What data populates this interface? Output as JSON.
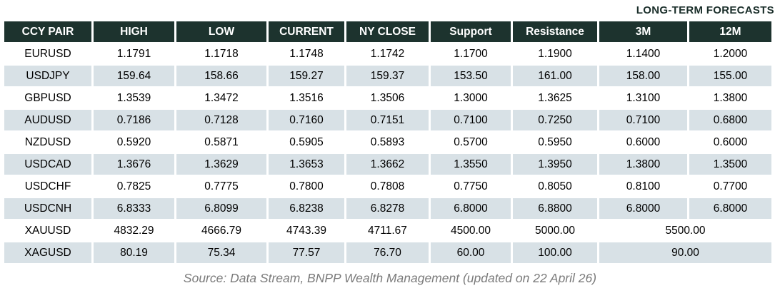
{
  "chart_data": {
    "type": "table",
    "title": "LONG-TERM FORECASTS",
    "columns": [
      "CCY PAIR",
      "HIGH",
      "LOW",
      "CURRENT",
      "NY CLOSE",
      "Support",
      "Resistance",
      "3M",
      "12M"
    ],
    "rows": [
      {
        "cells": [
          "EURUSD",
          "1.1791",
          "1.1718",
          "1.1748",
          "1.1742",
          "1.1700",
          "1.1900",
          "1.1400",
          "1.2000"
        ]
      },
      {
        "cells": [
          "USDJPY",
          "159.64",
          "158.66",
          "159.27",
          "159.37",
          "153.50",
          "161.00",
          "158.00",
          "155.00"
        ]
      },
      {
        "cells": [
          "GBPUSD",
          "1.3539",
          "1.3472",
          "1.3516",
          "1.3506",
          "1.3000",
          "1.3625",
          "1.3100",
          "1.3800"
        ]
      },
      {
        "cells": [
          "AUDUSD",
          "0.7186",
          "0.7128",
          "0.7160",
          "0.7151",
          "0.7100",
          "0.7250",
          "0.7100",
          "0.6800"
        ]
      },
      {
        "cells": [
          "NZDUSD",
          "0.5920",
          "0.5871",
          "0.5905",
          "0.5893",
          "0.5700",
          "0.5950",
          "0.6000",
          "0.6000"
        ]
      },
      {
        "cells": [
          "USDCAD",
          "1.3676",
          "1.3629",
          "1.3653",
          "1.3662",
          "1.3550",
          "1.3950",
          "1.3800",
          "1.3500"
        ]
      },
      {
        "cells": [
          "USDCHF",
          "0.7825",
          "0.7775",
          "0.7800",
          "0.7808",
          "0.7750",
          "0.8050",
          "0.8100",
          "0.7700"
        ]
      },
      {
        "cells": [
          "USDCNH",
          "6.8333",
          "6.8099",
          "6.8238",
          "6.8278",
          "6.8000",
          "6.8800",
          "6.8000",
          "6.8000"
        ]
      },
      {
        "cells": [
          "XAUUSD",
          "4832.29",
          "4666.79",
          "4743.39",
          "4711.67",
          "4500.00",
          "5000.00",
          "5500.00"
        ],
        "merge_last": 2
      },
      {
        "cells": [
          "XAGUSD",
          "80.19",
          "75.34",
          "77.57",
          "76.70",
          "60.00",
          "100.00",
          "90.00"
        ],
        "merge_last": 2
      }
    ],
    "source": "Source: Data Stream, BNPP Wealth Management (updated on 22 April 26)"
  },
  "colors": {
    "header-bg": "#1d332e",
    "header-text": "#ffffff",
    "row-bg": "#ffffff",
    "alt-row-bg": "#d8e1e6",
    "title-color": "#1a2e2a",
    "source-color": "#7b7b7b"
  }
}
